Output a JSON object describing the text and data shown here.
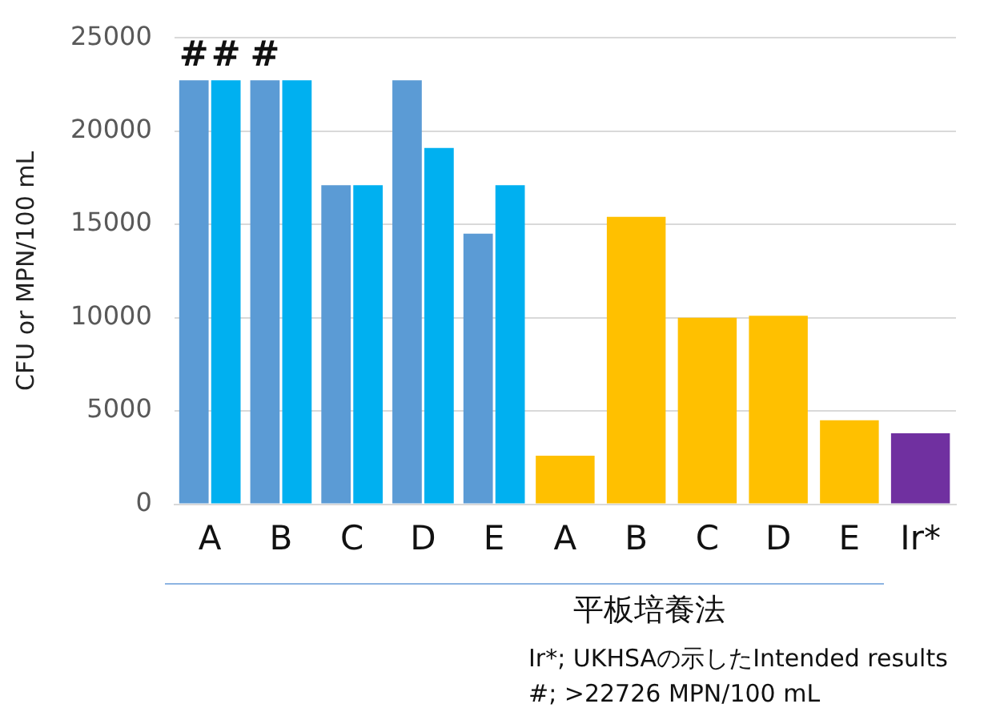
{
  "chart_data": {
    "type": "bar",
    "ylabel": "CFU or MPN/100 mL",
    "categories": [
      "A",
      "B",
      "C",
      "D",
      "E",
      "A",
      "B",
      "C",
      "D",
      "E",
      "Ir*"
    ],
    "series": [
      {
        "color": "#5b9bd5",
        "values": [
          22726,
          22726,
          17100,
          22726,
          14500,
          null,
          null,
          null,
          null,
          null,
          null
        ]
      },
      {
        "color": "#00b0f0",
        "values": [
          22726,
          22726,
          17100,
          19100,
          17100,
          null,
          null,
          null,
          null,
          null,
          null
        ]
      },
      {
        "color": "#ffc000",
        "values": [
          null,
          null,
          null,
          null,
          null,
          2600,
          15400,
          10000,
          10100,
          4500,
          null
        ]
      },
      {
        "color": "#7030a0",
        "values": [
          null,
          null,
          null,
          null,
          null,
          null,
          null,
          null,
          null,
          null,
          3800
        ]
      }
    ],
    "ylim": [
      0,
      25000
    ],
    "yticks": [
      0,
      5000,
      10000,
      15000,
      20000,
      25000
    ],
    "grid": "y",
    "legend": false,
    "annotations": [
      {
        "text": "#",
        "x": "A",
        "y": 22726
      },
      {
        "text": "#",
        "x": "A",
        "y": 22726
      },
      {
        "text": "#",
        "x": "B",
        "y": 22726
      },
      "平板培養法",
      "Ir*; UKHSAの示したIntended results",
      "#; >22726 MPN/100 mL"
    ]
  }
}
